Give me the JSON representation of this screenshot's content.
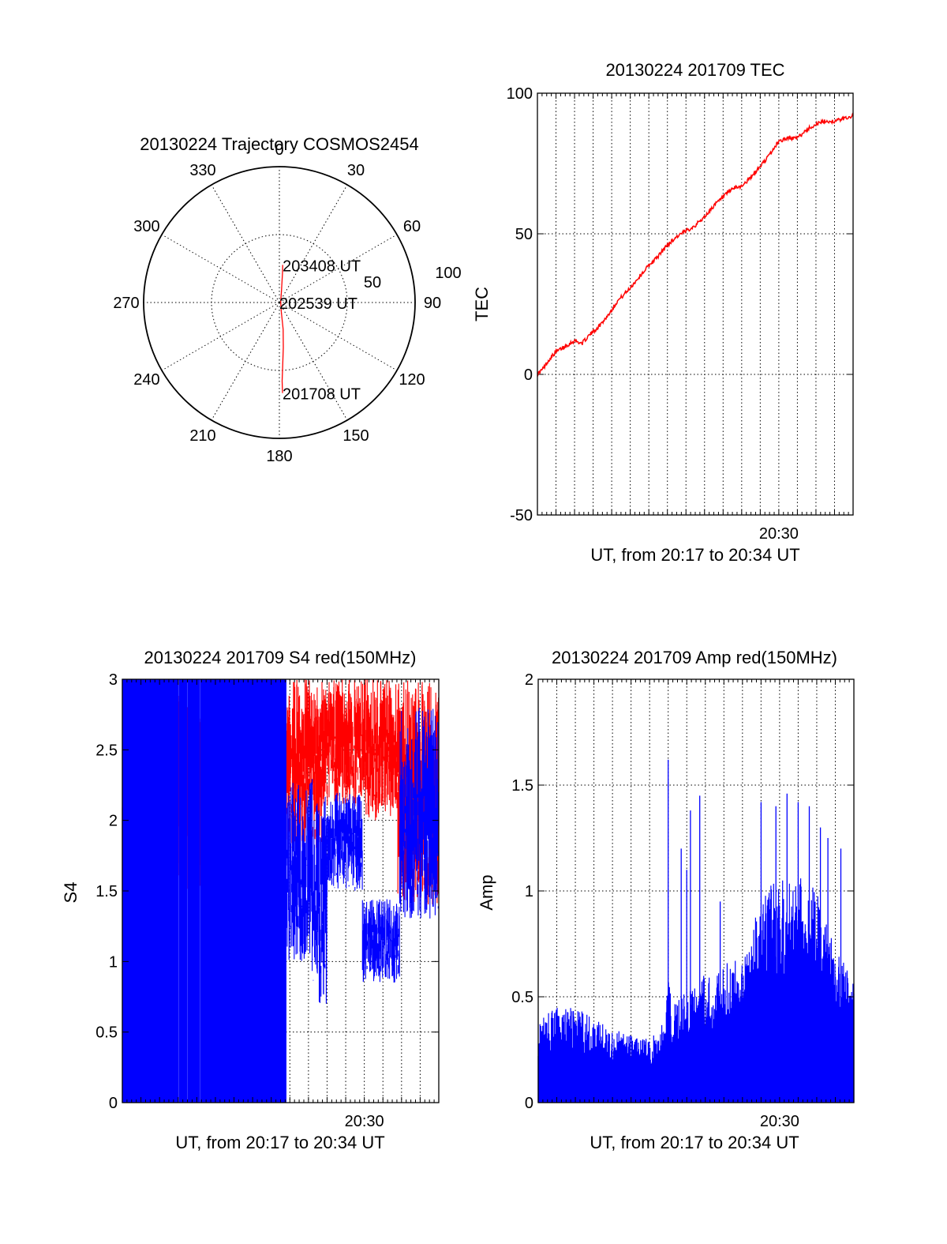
{
  "chart_data": [
    {
      "type": "polar",
      "title": "20130224 Trajectory COSMOS2454",
      "angle_labels": [
        "0",
        "30",
        "60",
        "90",
        "120",
        "150",
        "180",
        "210",
        "240",
        "270",
        "300",
        "330"
      ],
      "radial_ticks": [
        "50",
        "100"
      ],
      "series": [
        {
          "color": "#ff0000",
          "points": [
            {
              "az": 5,
              "el": 65
            },
            {
              "az": 6,
              "el": 70
            },
            {
              "az": 10,
              "el": 82
            },
            {
              "az": 60,
              "el": 89
            },
            {
              "az": 168,
              "el": 84
            },
            {
              "az": 172,
              "el": 72
            },
            {
              "az": 175,
              "el": 60
            },
            {
              "az": 177,
              "el": 48
            },
            {
              "az": 178,
              "el": 38
            },
            {
              "az": 178,
              "el": 30
            }
          ]
        }
      ],
      "annotations": [
        {
          "text": "203408 UT",
          "az": 5,
          "el": 65
        },
        {
          "text": "202539 UT",
          "az": 88,
          "el": 90
        },
        {
          "text": "201708 UT",
          "az": 178,
          "el": 30
        }
      ]
    },
    {
      "type": "line",
      "title": "20130224 201709 TEC",
      "ylabel": "TEC",
      "xlabel": "UT, from 20:17 to 20:34 UT",
      "ylim": [
        -50,
        100
      ],
      "yticks": [
        "-50",
        "0",
        "50",
        "100"
      ],
      "xtick_labels": [
        {
          "t": 30,
          "label": "20:30"
        }
      ],
      "x_range_minutes": [
        17,
        34
      ],
      "series": [
        {
          "color": "#ff0000",
          "points": [
            [
              17.0,
              0
            ],
            [
              17.3,
              2
            ],
            [
              17.6,
              5
            ],
            [
              18.0,
              8
            ],
            [
              18.5,
              10
            ],
            [
              19.0,
              12
            ],
            [
              19.4,
              11
            ],
            [
              19.8,
              14
            ],
            [
              20.3,
              17
            ],
            [
              20.8,
              21
            ],
            [
              21.3,
              26
            ],
            [
              21.9,
              30
            ],
            [
              22.4,
              34
            ],
            [
              22.9,
              38
            ],
            [
              23.5,
              42
            ],
            [
              24.0,
              46
            ],
            [
              24.5,
              49
            ],
            [
              25.0,
              51
            ],
            [
              25.5,
              53
            ],
            [
              26.0,
              56
            ],
            [
              26.5,
              60
            ],
            [
              27.0,
              63
            ],
            [
              27.5,
              66
            ],
            [
              28.0,
              67
            ],
            [
              28.5,
              70
            ],
            [
              29.0,
              74
            ],
            [
              29.5,
              78
            ],
            [
              30.0,
              83
            ],
            [
              30.5,
              84
            ],
            [
              31.0,
              84
            ],
            [
              31.5,
              87
            ],
            [
              32.0,
              89
            ],
            [
              32.5,
              90
            ],
            [
              33.0,
              90
            ],
            [
              33.5,
              91
            ],
            [
              34.0,
              92
            ]
          ]
        }
      ]
    },
    {
      "type": "line",
      "title": "20130224 201709 S4 red(150MHz)",
      "ylabel": "S4",
      "xlabel": "UT, from 20:17 to 20:34 UT",
      "ylim": [
        0,
        3
      ],
      "yticks": [
        "0",
        "0.5",
        "1",
        "1.5",
        "2",
        "2.5",
        "3"
      ],
      "xtick_labels": [
        {
          "t": 30,
          "label": "20:30"
        }
      ],
      "x_range_minutes": [
        17,
        34
      ],
      "series": [
        {
          "color": "#ff0000",
          "segments": [
            {
              "t0": 17.0,
              "t1": 25.8,
              "low": 1.5,
              "high": 3.0
            },
            {
              "t0": 25.8,
              "t1": 27.7,
              "low": 1.8,
              "high": 3.0
            },
            {
              "t0": 27.7,
              "t1": 30.0,
              "low": 2.1,
              "high": 3.0
            },
            {
              "t0": 30.0,
              "t1": 31.8,
              "low": 2.0,
              "high": 3.0
            },
            {
              "t0": 31.8,
              "t1": 34.0,
              "low": 1.4,
              "high": 3.0
            }
          ]
        },
        {
          "color": "#0000ff",
          "segments": [
            {
              "t0": 17.0,
              "t1": 25.8,
              "low": 0.0,
              "high": 3.0
            },
            {
              "t0": 25.8,
              "t1": 27.2,
              "low": 1.0,
              "high": 2.3
            },
            {
              "t0": 27.2,
              "t1": 28.0,
              "low": 0.7,
              "high": 2.2
            },
            {
              "t0": 28.0,
              "t1": 29.9,
              "low": 1.5,
              "high": 2.2
            },
            {
              "t0": 29.9,
              "t1": 31.9,
              "low": 0.85,
              "high": 1.45
            },
            {
              "t0": 31.9,
              "t1": 34.0,
              "low": 1.3,
              "high": 2.8
            }
          ]
        }
      ]
    },
    {
      "type": "bar",
      "title": "20130224 201709 Amp red(150MHz)",
      "ylabel": "Amp",
      "xlabel": "UT, from 20:17 to 20:34 UT",
      "ylim": [
        0,
        2
      ],
      "yticks": [
        "0",
        "0.5",
        "1",
        "1.5",
        "2"
      ],
      "xtick_labels": [
        {
          "t": 30,
          "label": "20:30"
        }
      ],
      "x_range_minutes": [
        17,
        34
      ],
      "series": [
        {
          "color": "#0000ff",
          "envelope": [
            [
              17.0,
              0.4
            ],
            [
              18.0,
              0.45
            ],
            [
              19.0,
              0.45
            ],
            [
              20.0,
              0.4
            ],
            [
              21.0,
              0.35
            ],
            [
              22.0,
              0.32
            ],
            [
              23.0,
              0.3
            ],
            [
              23.8,
              0.4
            ],
            [
              24.0,
              0.62
            ],
            [
              24.2,
              0.45
            ],
            [
              24.6,
              0.5
            ],
            [
              25.0,
              0.55
            ],
            [
              25.6,
              0.55
            ],
            [
              26.0,
              0.62
            ],
            [
              26.5,
              0.6
            ],
            [
              27.0,
              0.65
            ],
            [
              28.0,
              0.7
            ],
            [
              28.6,
              0.85
            ],
            [
              29.0,
              0.95
            ],
            [
              29.5,
              1.05
            ],
            [
              30.0,
              1.05
            ],
            [
              30.5,
              1.05
            ],
            [
              31.0,
              1.1
            ],
            [
              31.5,
              1.05
            ],
            [
              32.0,
              1.0
            ],
            [
              32.5,
              0.85
            ],
            [
              33.0,
              0.75
            ],
            [
              33.5,
              0.65
            ],
            [
              34.0,
              0.6
            ]
          ],
          "spikes": [
            [
              24.0,
              1.62
            ],
            [
              24.7,
              1.2
            ],
            [
              25.0,
              1.1
            ],
            [
              25.2,
              1.38
            ],
            [
              25.7,
              1.45
            ],
            [
              26.8,
              0.95
            ],
            [
              29.0,
              1.42
            ],
            [
              29.8,
              1.4
            ],
            [
              30.4,
              1.46
            ],
            [
              31.0,
              1.42
            ],
            [
              31.6,
              1.4
            ],
            [
              32.2,
              1.3
            ],
            [
              32.6,
              1.25
            ],
            [
              33.3,
              1.2
            ]
          ]
        }
      ]
    }
  ]
}
